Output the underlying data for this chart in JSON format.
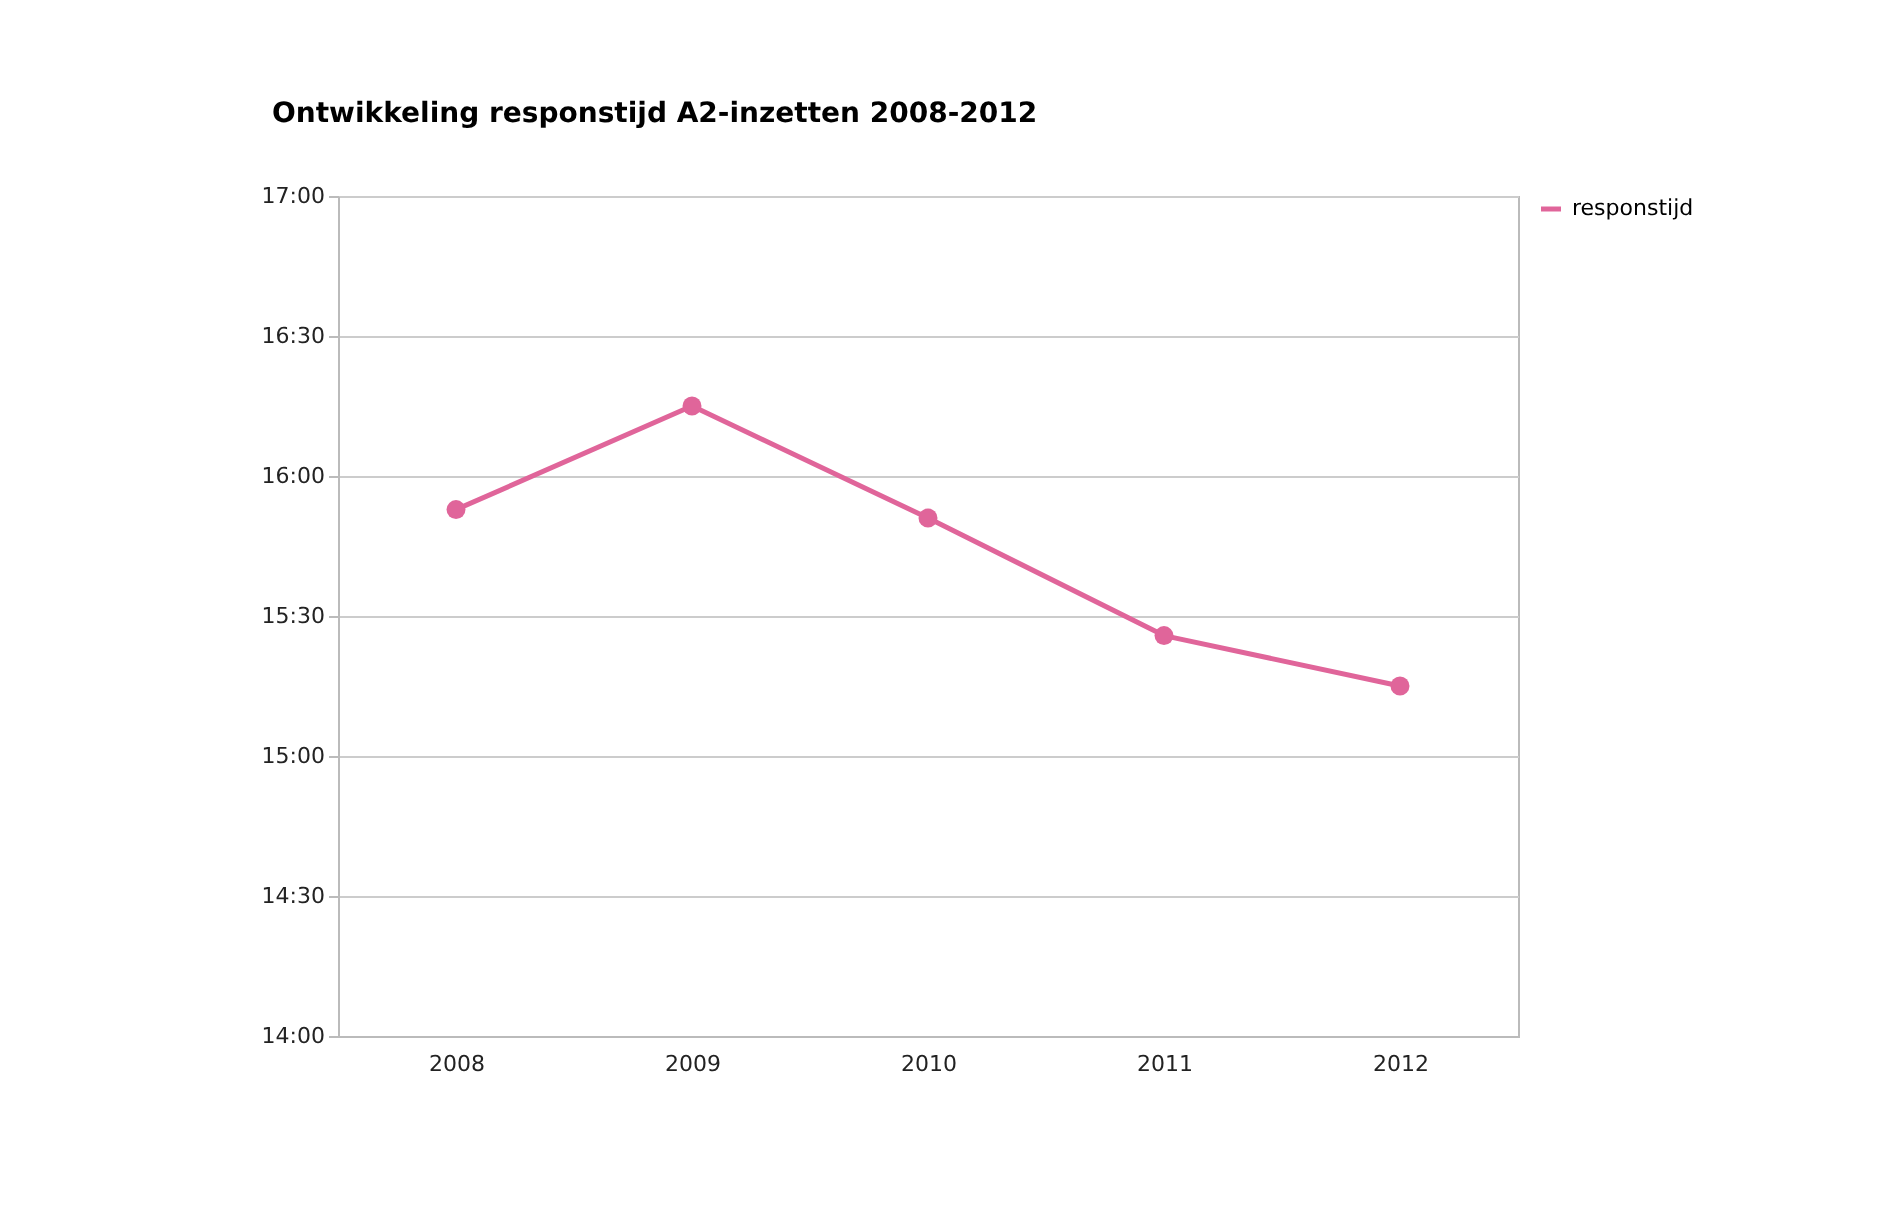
{
  "chart_data": {
    "type": "line",
    "title": "Ontwikkeling responstijd A2-inzetten 2008-2012",
    "categories": [
      "2008",
      "2009",
      "2010",
      "2011",
      "2012"
    ],
    "series": [
      {
        "name": "responstijd",
        "color": "#e0659a",
        "values": [
          15.88,
          16.25,
          15.85,
          15.43,
          15.25
        ]
      }
    ],
    "ylim": [
      14,
      17
    ],
    "yticks": [
      {
        "value": 14,
        "label": "14:00"
      },
      {
        "value": 14.5,
        "label": "14:30"
      },
      {
        "value": 15,
        "label": "15:00"
      },
      {
        "value": 15.5,
        "label": "15:30"
      },
      {
        "value": 16,
        "label": "16:00"
      },
      {
        "value": 16.5,
        "label": "16:30"
      },
      {
        "value": 17,
        "label": "17:00"
      }
    ],
    "grid": "y",
    "legend": "right",
    "marker": "circle",
    "line_style": "solid"
  }
}
